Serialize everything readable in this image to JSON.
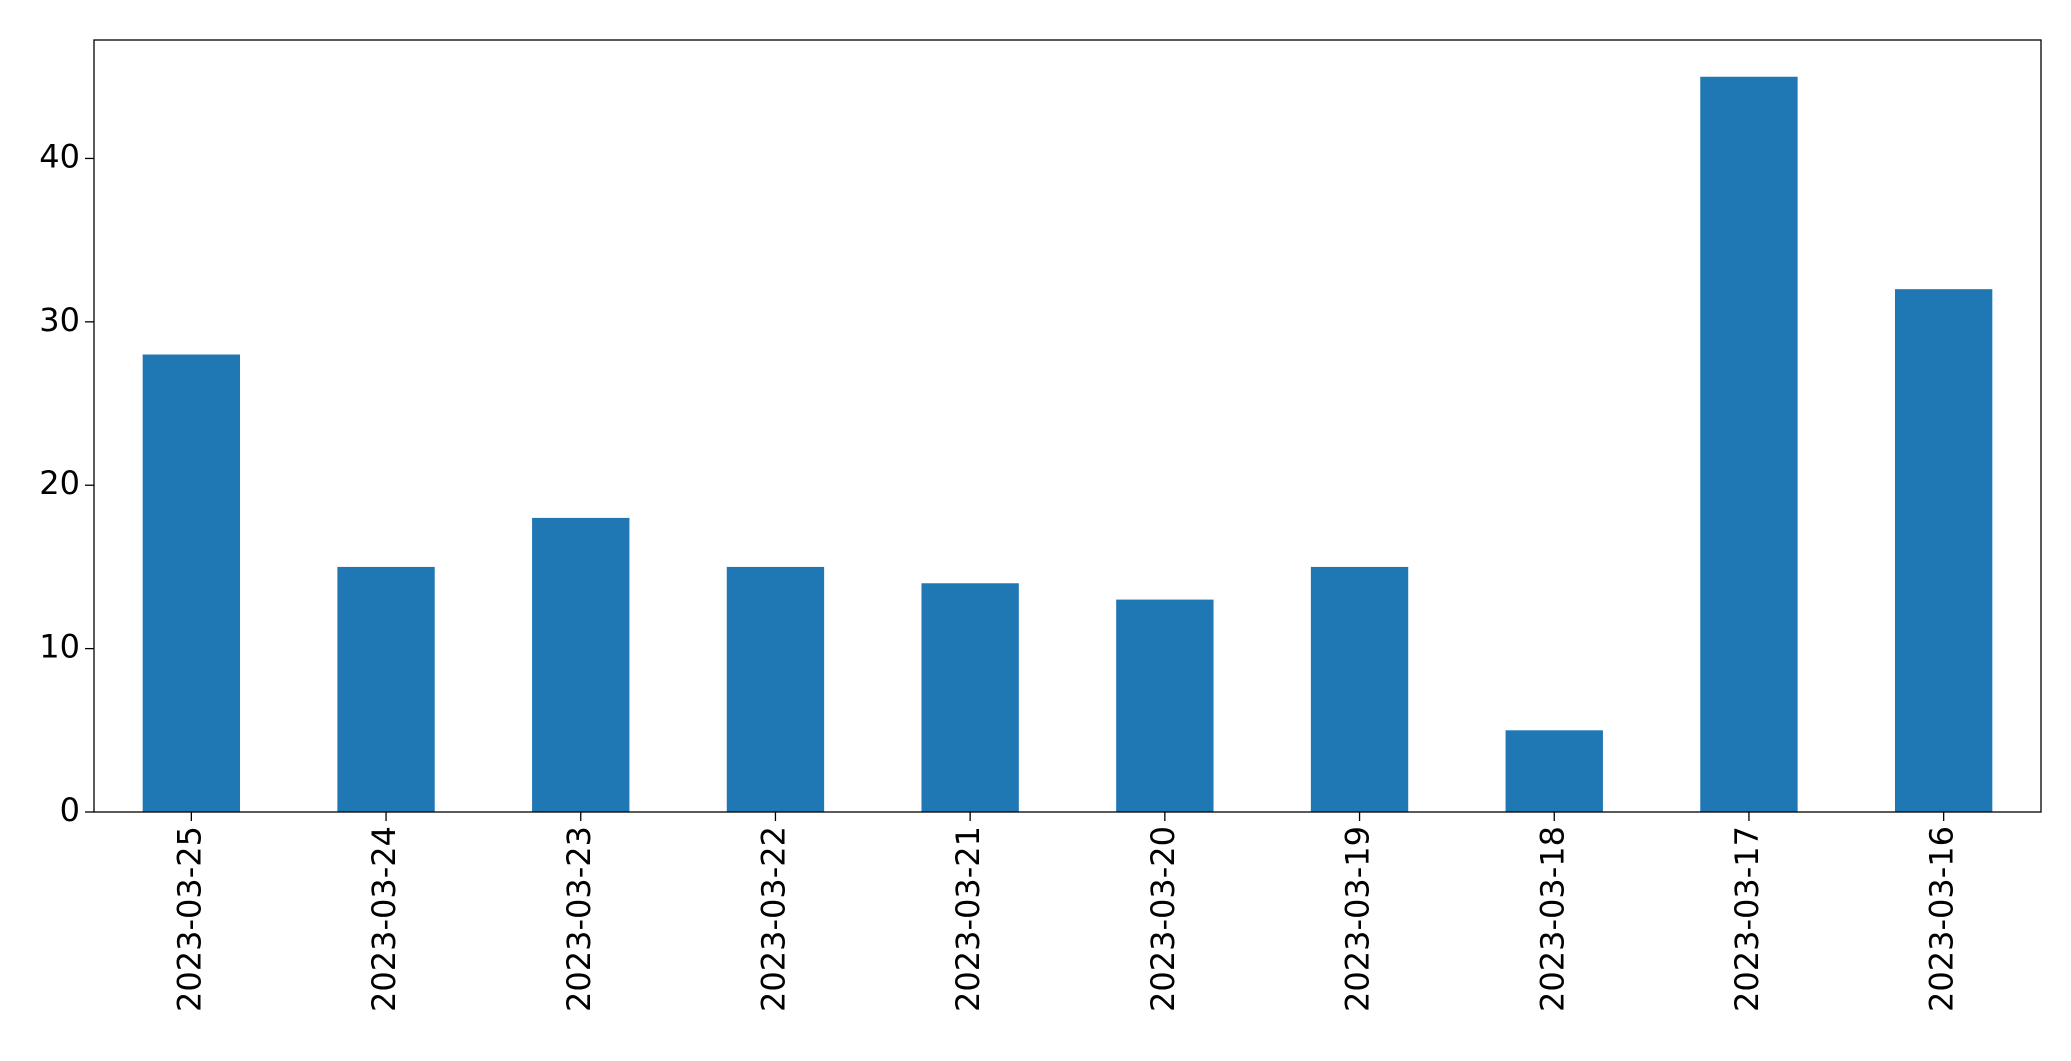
{
  "chart_data": {
    "type": "bar",
    "categories": [
      "2023-03-25",
      "2023-03-24",
      "2023-03-23",
      "2023-03-22",
      "2023-03-21",
      "2023-03-20",
      "2023-03-19",
      "2023-03-18",
      "2023-03-17",
      "2023-03-16"
    ],
    "values": [
      28,
      15,
      18,
      15,
      14,
      13,
      15,
      5,
      45,
      32
    ],
    "color": "#1f77b4",
    "ylim": [
      0,
      47.25
    ],
    "yticks": [
      0,
      10,
      20,
      30,
      40
    ],
    "grid": false
  }
}
